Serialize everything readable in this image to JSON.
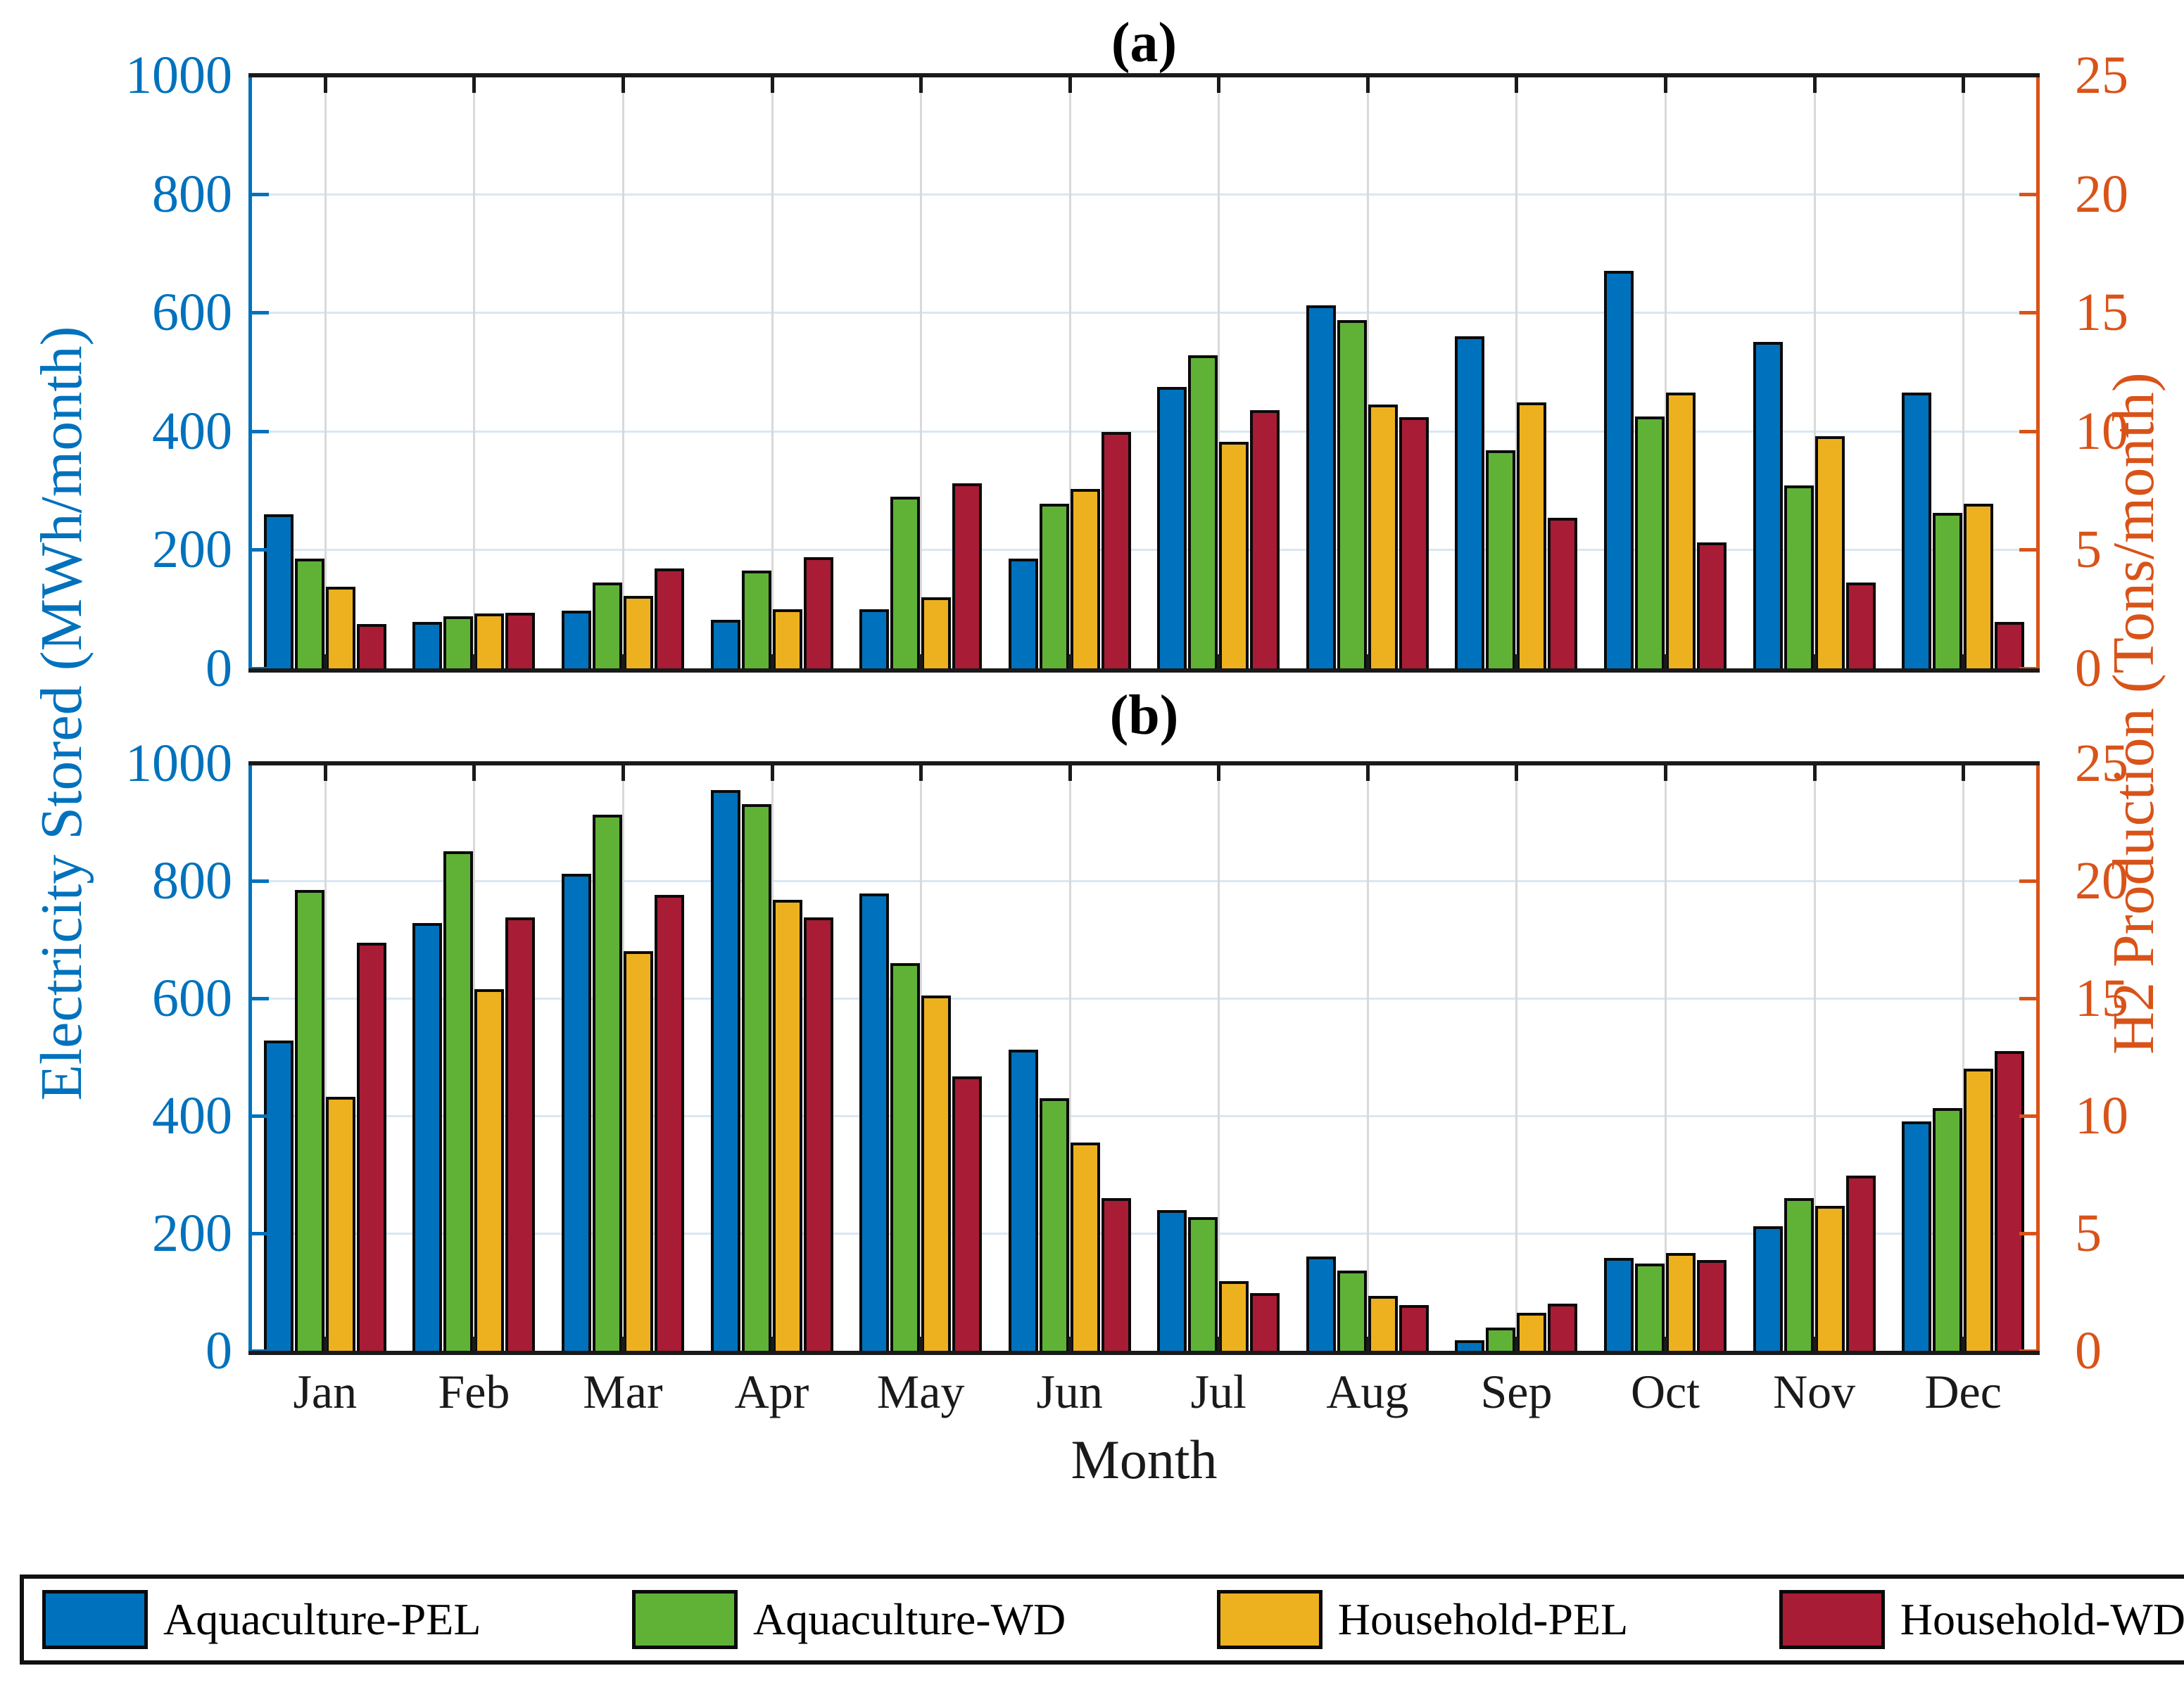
{
  "figure": {
    "panel_a_title": "(a)",
    "panel_b_title": "(b)",
    "x_axis_label": "Month",
    "left_y_axis_label": "Electricity Stored (MWh/month)",
    "right_y_axis_label": "H2 Production (Tons/month)",
    "months": [
      "Jan",
      "Feb",
      "Mar",
      "Apr",
      "May",
      "Jun",
      "Jul",
      "Aug",
      "Sep",
      "Oct",
      "Nov",
      "Dec"
    ],
    "left_ticks": [
      0,
      200,
      400,
      600,
      800,
      1000
    ],
    "right_ticks": [
      0,
      5,
      10,
      15,
      20,
      25
    ]
  },
  "colors": {
    "aquaculture_pel": "#0072BD",
    "aquaculture_wd": "#5FB236",
    "household_pel": "#EDB120",
    "household_wd": "#A81C35",
    "left_axis": "#0072BD",
    "right_axis": "#D95319",
    "grid_horizontal": "#d8e7f4",
    "grid_vertical": "#d9d9d9",
    "spine_black": "#1a1a1a"
  },
  "legend": [
    {
      "label": "Aquaculture-PEL",
      "color_key": "aquaculture_pel"
    },
    {
      "label": "Aquaculture-WD",
      "color_key": "aquaculture_wd"
    },
    {
      "label": "Household-PEL",
      "color_key": "household_pel"
    },
    {
      "label": "Household-WD",
      "color_key": "household_wd"
    }
  ],
  "chart_data": [
    {
      "type": "bar",
      "title": "(a)",
      "categories": [
        "Jan",
        "Feb",
        "Mar",
        "Apr",
        "May",
        "Jun",
        "Jul",
        "Aug",
        "Sep",
        "Oct",
        "Nov",
        "Dec"
      ],
      "left_ylabel": "Electricity Stored (MWh/month)",
      "right_ylabel": "H2 Production (Tons/month)",
      "left_ylim": [
        0,
        1000
      ],
      "right_ylim": [
        0,
        25
      ],
      "right_axis_conversion": "tons = MWh / 40",
      "grid": true,
      "series": [
        {
          "name": "Aquaculture-PEL",
          "color_key": "aquaculture_pel",
          "values_mwh": [
            260,
            78,
            97,
            82,
            100,
            185,
            475,
            612,
            560,
            670,
            550,
            465
          ]
        },
        {
          "name": "Aquaculture-WD",
          "color_key": "aquaculture_wd",
          "values_mwh": [
            185,
            88,
            145,
            165,
            290,
            278,
            528,
            587,
            368,
            425,
            308,
            262
          ]
        },
        {
          "name": "Household-PEL",
          "color_key": "household_pel",
          "values_mwh": [
            138,
            93,
            122,
            100,
            120,
            303,
            382,
            445,
            448,
            465,
            392,
            277
          ]
        },
        {
          "name": "Household-WD",
          "color_key": "household_wd",
          "values_mwh": [
            75,
            94,
            168,
            188,
            312,
            398,
            435,
            424,
            254,
            212,
            145,
            78
          ]
        }
      ]
    },
    {
      "type": "bar",
      "title": "(b)",
      "categories": [
        "Jan",
        "Feb",
        "Mar",
        "Apr",
        "May",
        "Jun",
        "Jul",
        "Aug",
        "Sep",
        "Oct",
        "Nov",
        "Dec"
      ],
      "left_ylabel": "Electricity Stored (MWh/month)",
      "right_ylabel": "H2 Production (Tons/month)",
      "left_ylim": [
        0,
        1000
      ],
      "right_ylim": [
        0,
        25
      ],
      "right_axis_conversion": "tons = MWh / 40",
      "grid": true,
      "series": [
        {
          "name": "Aquaculture-PEL",
          "color_key": "aquaculture_pel",
          "values_mwh": [
            528,
            728,
            812,
            955,
            778,
            513,
            240,
            160,
            18,
            158,
            212,
            390
          ]
        },
        {
          "name": "Aquaculture-WD",
          "color_key": "aquaculture_wd",
          "values_mwh": [
            785,
            850,
            912,
            930,
            660,
            430,
            227,
            136,
            40,
            148,
            260,
            413
          ]
        },
        {
          "name": "Household-PEL",
          "color_key": "household_pel",
          "values_mwh": [
            432,
            616,
            680,
            768,
            605,
            355,
            119,
            93,
            65,
            166,
            247,
            480
          ]
        },
        {
          "name": "Household-WD",
          "color_key": "household_wd",
          "values_mwh": [
            695,
            738,
            776,
            738,
            467,
            260,
            98,
            78,
            80,
            155,
            298,
            510
          ]
        }
      ]
    }
  ]
}
